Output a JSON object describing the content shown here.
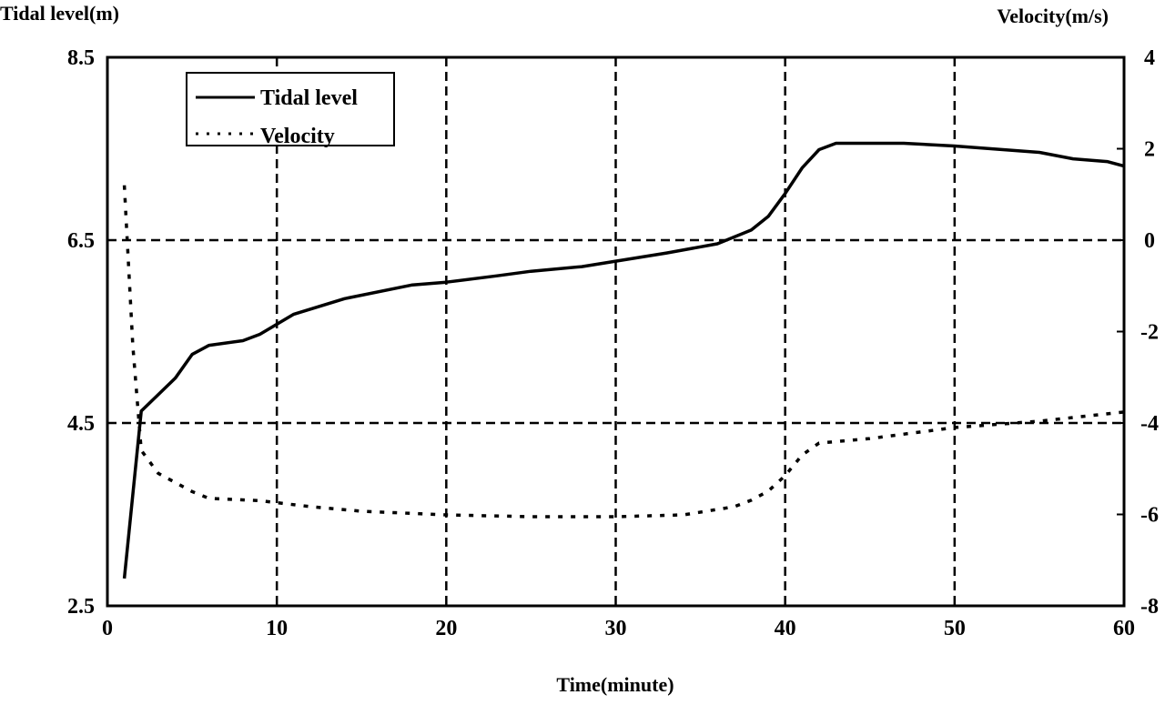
{
  "chart_data": {
    "type": "line",
    "xlabel": "Time(minute)",
    "ylabel_left": "Tidal level(m)",
    "ylabel_right": "Velocity(m/s)",
    "xlim": [
      0,
      60
    ],
    "ylim_left": [
      2.5,
      8.5
    ],
    "ylim_right": [
      -8,
      4
    ],
    "x_ticks": [
      0,
      10,
      20,
      30,
      40,
      50,
      60
    ],
    "y_ticks_left": [
      2.5,
      4.5,
      6.5,
      8.5
    ],
    "y_ticks_left_labels": [
      "2.5",
      "4.5",
      "6.5",
      "8.5"
    ],
    "y_ticks_right": [
      -8,
      -6,
      -4,
      -2,
      0,
      2,
      4
    ],
    "grid": true,
    "legend_placement": "top-left",
    "series": [
      {
        "name": "Tidal level",
        "axis": "left",
        "style": "solid",
        "color": "#000000",
        "x": [
          1,
          2,
          4,
          5,
          6,
          8,
          9,
          11,
          14,
          18,
          20,
          23,
          25,
          28,
          30,
          33,
          36,
          38,
          39,
          40,
          41,
          42,
          43,
          47,
          50,
          55,
          57,
          59,
          60
        ],
        "y": [
          2.8,
          4.63,
          4.99,
          5.25,
          5.35,
          5.4,
          5.47,
          5.69,
          5.86,
          6.01,
          6.04,
          6.11,
          6.16,
          6.21,
          6.27,
          6.36,
          6.46,
          6.61,
          6.76,
          7.01,
          7.29,
          7.49,
          7.56,
          7.56,
          7.53,
          7.46,
          7.39,
          7.36,
          7.31
        ]
      },
      {
        "name": "Velocity",
        "axis": "right",
        "style": "dotted",
        "color": "#000000",
        "x": [
          1,
          1.5,
          2,
          3,
          5,
          6,
          9,
          12,
          15,
          20,
          25,
          30,
          34,
          37,
          38,
          39,
          40,
          41,
          42,
          45,
          50,
          55,
          60
        ],
        "y": [
          1.2,
          -2.3,
          -4.6,
          -5.1,
          -5.5,
          -5.65,
          -5.7,
          -5.83,
          -5.93,
          -6.01,
          -6.05,
          -6.05,
          -6.01,
          -5.83,
          -5.69,
          -5.49,
          -5.15,
          -4.7,
          -4.44,
          -4.34,
          -4.1,
          -3.96,
          -3.76
        ]
      }
    ]
  }
}
